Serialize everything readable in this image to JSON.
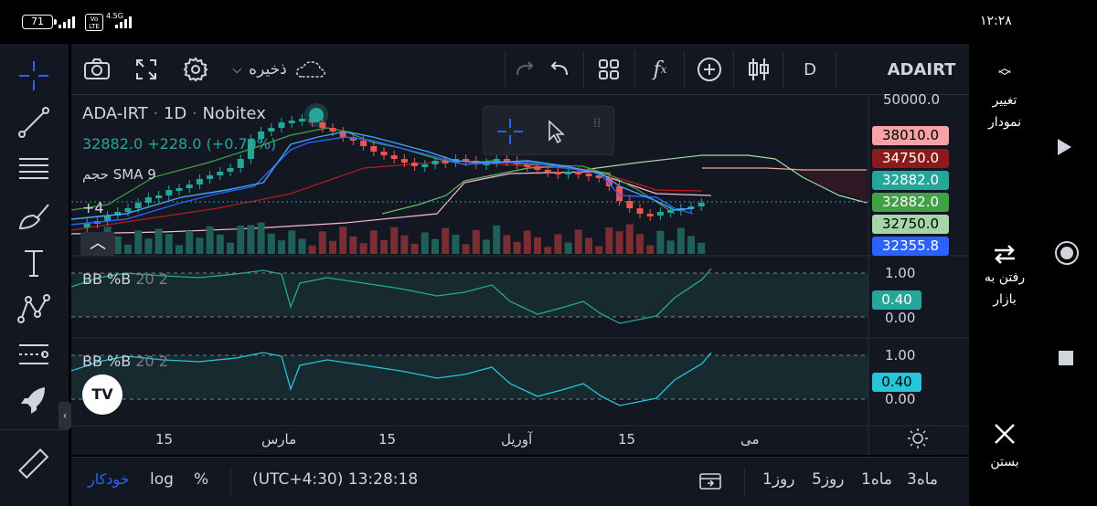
{
  "status_bar": {
    "battery": "71",
    "network": "4.5G",
    "volte": "Vo LTE",
    "time": "۱۲:۲۸"
  },
  "toolbar": {
    "save_label": "ذخیره",
    "interval": "D",
    "symbol": "ADAIRT"
  },
  "right_panel": {
    "change_chart": "تغییر\nنمودار",
    "go_market": "رفتن به\nبازار",
    "close": "بستن"
  },
  "chart": {
    "symbol": "ADA-IRT",
    "interval": "1D",
    "exchange": "Nobitex",
    "price_line": "32882.0 +228.0 (+0.70%)",
    "volume_label": "حجم",
    "sma_label": "SMA 9",
    "more_indicators": "+4",
    "axis_top": "50000.0",
    "price_tags": [
      {
        "value": "38010.0",
        "color": "#f5a3a3",
        "text": "#000000"
      },
      {
        "value": "34750.0",
        "color": "#8b1a1a",
        "text": "#ffffff"
      },
      {
        "value": "32882.0",
        "color": "#26a69a",
        "text": "#ffffff"
      },
      {
        "value": "32882.0",
        "color": "#43a047",
        "text": "#ffffff"
      },
      {
        "value": "32750.0",
        "color": "#a5d6a7",
        "text": "#000000"
      },
      {
        "value": "32355.8",
        "color": "#2962ff",
        "text": "#ffffff"
      }
    ],
    "indicator1": {
      "name": "BB %B",
      "params": "20 2",
      "top": "1.00",
      "bottom": "0.00",
      "value": "0.40",
      "color": "#26a69a"
    },
    "indicator2": {
      "name": "BB %B",
      "params": "20 2",
      "top": "1.00",
      "bottom": "0.00",
      "value": "0.40",
      "color": "#26c6da"
    },
    "time_ticks": [
      "15",
      "مارس",
      "15",
      "آوریل",
      "15",
      "می"
    ]
  },
  "bottom_bar": {
    "auto": "خودکار",
    "log": "log",
    "percent": "%",
    "timezone": "(UTC+4:30) 13:28:18",
    "ranges": [
      "3ماه",
      "1ماه",
      "5روز",
      "1روز"
    ]
  },
  "colors": {
    "background": "#131722",
    "accent": "#2962ff",
    "up": "#26a69a",
    "down": "#ef5350"
  }
}
